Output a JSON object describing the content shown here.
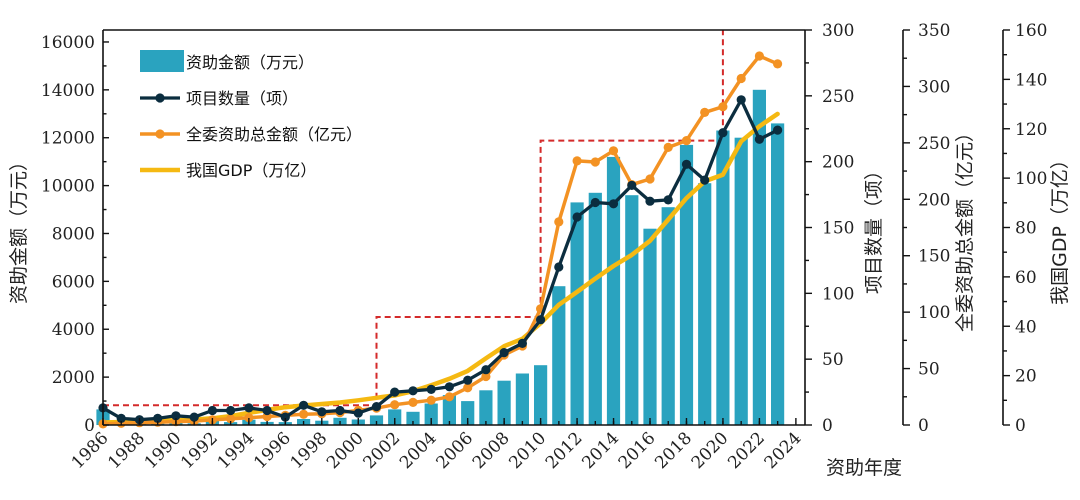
{
  "chart_data": {
    "type": "bar",
    "xlabel": "资助年度",
    "categories": [
      "1986",
      "1987",
      "1988",
      "1989",
      "1990",
      "1991",
      "1992",
      "1993",
      "1994",
      "1995",
      "1996",
      "1997",
      "1998",
      "1999",
      "2000",
      "2001",
      "2002",
      "2003",
      "2004",
      "2005",
      "2006",
      "2007",
      "2008",
      "2009",
      "2010",
      "2011",
      "2012",
      "2013",
      "2014",
      "2015",
      "2016",
      "2017",
      "2018",
      "2019",
      "2020",
      "2021",
      "2022",
      "2023"
    ],
    "x_tick_labels": [
      "1986",
      "1988",
      "1990",
      "1992",
      "1994",
      "1996",
      "1998",
      "2000",
      "2002",
      "2004",
      "2006",
      "2008",
      "2010",
      "2012",
      "2014",
      "2016",
      "2018",
      "2020",
      "2022",
      "2024"
    ],
    "legend": {
      "placement": "top-left",
      "entries": [
        "资助金额（万元）",
        "项目数量（项）",
        "全委资助总金额（亿元）",
        "我国GDP（万亿）"
      ]
    },
    "colors": {
      "bars": "#2AA3BF",
      "projects": "#0B2D3F",
      "total_funding": "#F39223",
      "gdp": "#F5B912",
      "guide": "#D42A2A"
    },
    "axes": [
      {
        "id": "funding",
        "label": "资助金额（万元）",
        "range": [
          0,
          16500
        ],
        "ticks": [
          0,
          2000,
          4000,
          6000,
          8000,
          10000,
          12000,
          14000,
          16000
        ]
      },
      {
        "id": "projects",
        "label": "项目数量（项）",
        "range": [
          0,
          300
        ],
        "ticks": [
          0,
          50,
          100,
          150,
          200,
          250,
          300
        ]
      },
      {
        "id": "total",
        "label": "全委资助总金额（亿元）",
        "range": [
          0,
          350
        ],
        "ticks": [
          0,
          50,
          100,
          150,
          200,
          250,
          300,
          350
        ]
      },
      {
        "id": "gdp",
        "label": "我国GDP（万亿）",
        "range": [
          0,
          160
        ],
        "ticks": [
          0,
          20,
          40,
          60,
          80,
          100,
          120,
          140,
          160
        ]
      }
    ],
    "series": [
      {
        "name": "资助金额（万元）",
        "kind": "bar",
        "axis": "funding",
        "values": [
          650,
          50,
          80,
          60,
          120,
          70,
          180,
          120,
          220,
          130,
          120,
          250,
          180,
          300,
          230,
          400,
          650,
          550,
          900,
          1250,
          1000,
          1450,
          1850,
          2150,
          2500,
          5800,
          9300,
          9700,
          11200,
          9600,
          8200,
          9100,
          11700,
          10100,
          12300,
          12000,
          14000,
          12600
        ]
      },
      {
        "name": "项目数量（项）",
        "kind": "line",
        "axis": "projects",
        "values": [
          13,
          5,
          4,
          5,
          7,
          6,
          11,
          11,
          13,
          11,
          6,
          15,
          10,
          11,
          9,
          14,
          25,
          26,
          27,
          29,
          34,
          42,
          55,
          62,
          80,
          120,
          158,
          169,
          168,
          182,
          170,
          171,
          198,
          186,
          222,
          247,
          217,
          224
        ]
      },
      {
        "name": "全委资助总金额（亿元）",
        "kind": "line",
        "axis": "total",
        "values": [
          1,
          1.5,
          2,
          2.5,
          3,
          3.5,
          4.5,
          5.5,
          6.5,
          7.5,
          8.5,
          9.5,
          10,
          11,
          13,
          15,
          18,
          20,
          22,
          25,
          33,
          43,
          62,
          70,
          103,
          180,
          234,
          233,
          243,
          213,
          218,
          246,
          252,
          277,
          282,
          307,
          327,
          320
        ]
      },
      {
        "name": "我国GDP（万亿）",
        "kind": "line",
        "axis": "gdp",
        "values": [
          1,
          1.2,
          1.5,
          1.7,
          1.9,
          2.2,
          2.7,
          3.6,
          4.9,
          6.1,
          7.2,
          7.9,
          8.5,
          9.1,
          10,
          11,
          12,
          13.7,
          16.1,
          18.7,
          21.9,
          27,
          31.9,
          34.9,
          41.2,
          48.7,
          53.9,
          59.3,
          64.4,
          68.9,
          74.6,
          83.2,
          91.9,
          98.7,
          101.4,
          114.9,
          121,
          126
        ]
      }
    ]
  }
}
